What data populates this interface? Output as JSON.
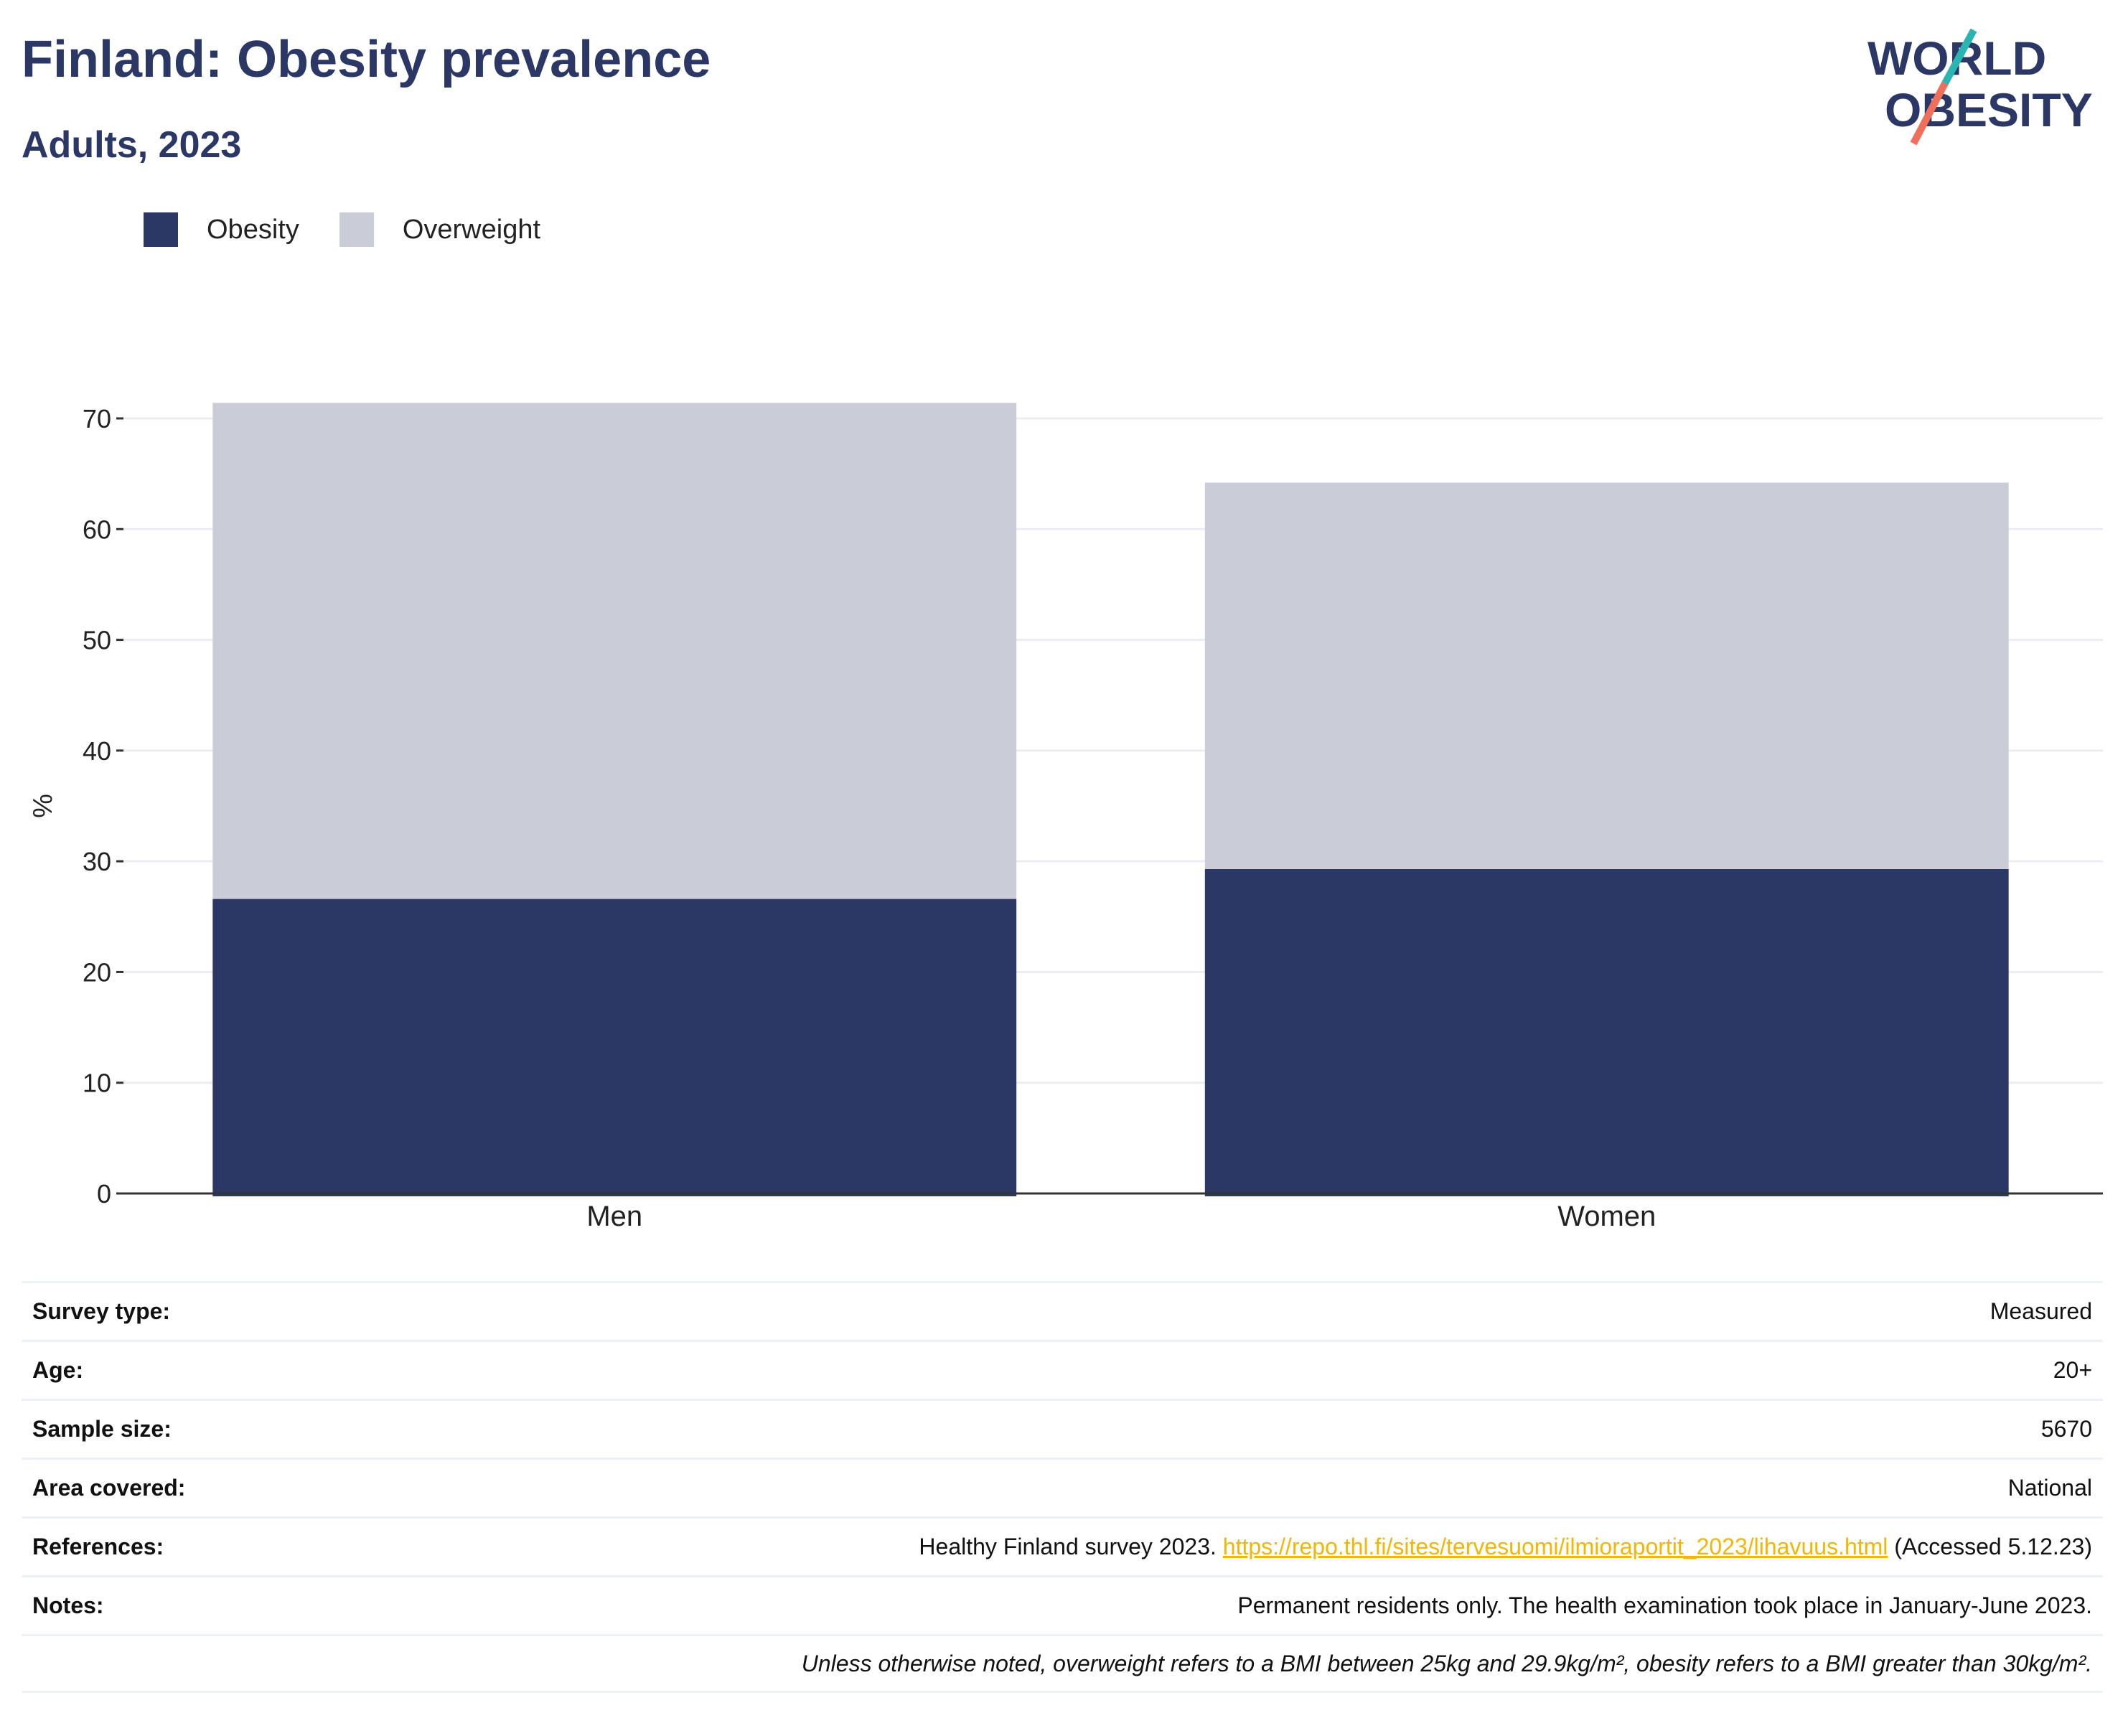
{
  "header": {
    "title": "Finland: Obesity prevalence",
    "subtitle": "Adults, 2023"
  },
  "logo": {
    "line1": "WORLD",
    "line2": "OBESITY",
    "accent_teal": "#2ab5b3",
    "accent_coral": "#ef6f5a"
  },
  "colors": {
    "obesity": "#2b3764",
    "overweight": "#cacdd8",
    "link": "#f2b705",
    "heading": "#2b3764"
  },
  "chart_data": {
    "type": "bar",
    "stacked": true,
    "categories": [
      "Men",
      "Women"
    ],
    "series": [
      {
        "name": "Obesity",
        "values": [
          26.6,
          29.3
        ]
      },
      {
        "name": "Overweight",
        "values": [
          44.8,
          34.9
        ]
      }
    ],
    "ylabel": "%",
    "xlabel": "",
    "ylim": [
      0,
      75
    ],
    "yticks": [
      0,
      10,
      20,
      30,
      40,
      50,
      60,
      70
    ],
    "grid": true,
    "legend_position": "top-left"
  },
  "info": {
    "survey_type_label": "Survey type:",
    "survey_type_value": "Measured",
    "age_label": "Age:",
    "age_value": "20+",
    "sample_size_label": "Sample size:",
    "sample_size_value": "5670",
    "area_label": "Area covered:",
    "area_value": "National",
    "references_label": "References:",
    "references_prefix": "Healthy Finland survey 2023.",
    "references_link": "https://repo.thl.fi/sites/tervesuomi/ilmioraportit_2023/lihavuus.html",
    "references_suffix": "(Accessed 5.12.23)",
    "notes_label": "Notes:",
    "notes_value": "Permanent residents only. The health examination took place in January-June 2023.",
    "footnote": "Unless otherwise noted, overweight refers to a BMI between 25kg and 29.9kg/m², obesity refers to a BMI greater than 30kg/m²."
  }
}
